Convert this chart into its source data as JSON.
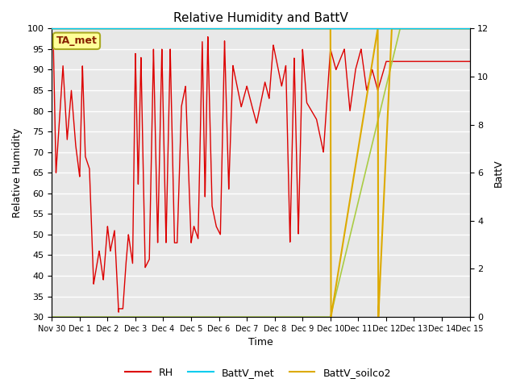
{
  "title": "Relative Humidity and BattV",
  "ylabel_left": "Relative Humidity",
  "ylabel_right": "BattV",
  "xlabel": "Time",
  "ylim_left": [
    30,
    100
  ],
  "ylim_right": [
    0,
    12
  ],
  "yticks_left": [
    30,
    35,
    40,
    45,
    50,
    55,
    60,
    65,
    70,
    75,
    80,
    85,
    90,
    95,
    100
  ],
  "yticks_right": [
    0,
    2,
    4,
    6,
    8,
    10,
    12
  ],
  "bg_color": "#ffffff",
  "plot_bg_color": "#e8e8e8",
  "grid_color": "#f8f8f8",
  "rh_color_hex": "#dd0000",
  "battv_met_color_hex": "#00ccee",
  "battv_soilco2_color_hex": "#ddaa00",
  "battv_soilco2_green_hex": "#aacc44",
  "annotation_text": "TA_met",
  "annotation_bg": "#ffff99",
  "annotation_border": "#aaaa22",
  "x_tick_labels": [
    "Nov 30",
    "Dec 1",
    "Dec 2",
    "Dec 3",
    "Dec 4",
    "Dec 5",
    "Dec 6",
    "Dec 7",
    "Dec 8",
    "Dec 9",
    "Dec 10",
    "Dec 11",
    "Dec 12",
    "Dec 13",
    "Dec 14",
    "Dec 15"
  ],
  "legend_labels": [
    "RH",
    "BattV_met",
    "BattV_soilco2"
  ]
}
